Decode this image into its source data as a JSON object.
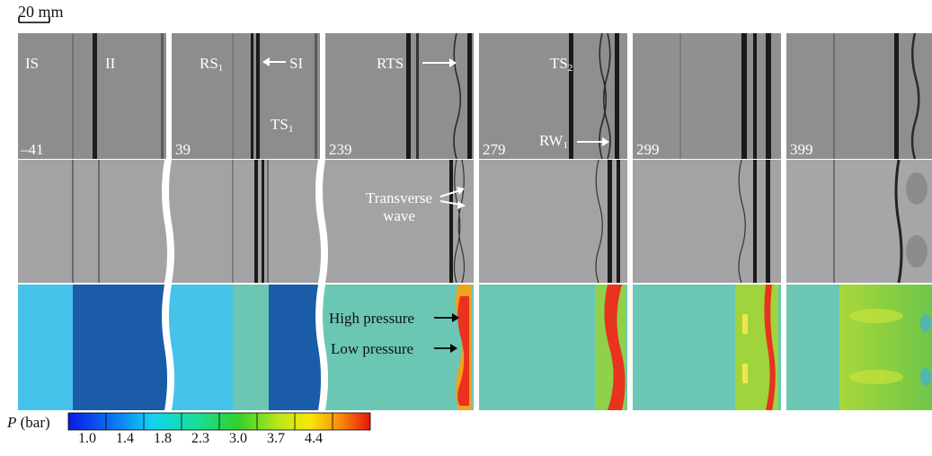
{
  "scale_bar": {
    "value": "20",
    "unit": "mm"
  },
  "frames": [
    "–41",
    "39",
    "239",
    "279",
    "299",
    "399"
  ],
  "labels": {
    "is": "IS",
    "ii": "II",
    "rs_base": "RS",
    "rs_sub": "1",
    "si": "SI",
    "ts1_base": "TS",
    "ts1_sub": "1",
    "rts": "RTS",
    "ts2_base": "TS",
    "ts2_sub": "2",
    "rw_base": "RW",
    "rw_sub": "1",
    "transverse_line1": "Transverse",
    "transverse_line2": "wave",
    "high_pressure": "High pressure",
    "low_pressure": "Low pressure"
  },
  "colorbar": {
    "symbol": "P",
    "unit": "(bar)",
    "ticks": [
      "1.0",
      "1.4",
      "1.8",
      "2.3",
      "3.0",
      "3.7",
      "4.4"
    ],
    "range": [
      1.0,
      4.8
    ]
  },
  "colors": {
    "schlieren_bg": "#8f8f8f",
    "numerical_bg": "#a2a2a4",
    "low_p_region": "#2a5fb0",
    "preshock_region": "#45c3ea",
    "mid_region": "#6bc7b4",
    "high_p": "#e8331f"
  }
}
